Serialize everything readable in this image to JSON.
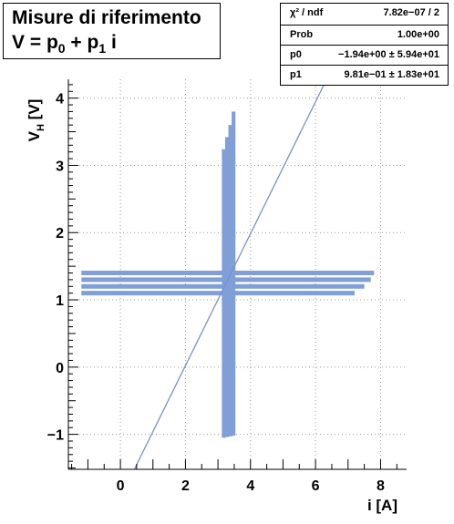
{
  "title": {
    "line1": "Misure di riferimento",
    "line2_prefix": "V = p",
    "line2_sub0": "0",
    "line2_mid": " + p",
    "line2_sub1": "1",
    "line2_suffix": " i"
  },
  "stats": [
    {
      "key": "χ² / ndf",
      "value": "7.82e−07 / 2"
    },
    {
      "key": "Prob",
      "value": "1.00e+00"
    },
    {
      "key": "p0",
      "value": "−1.94e+00 ± 5.94e+01"
    },
    {
      "key": "p1",
      "value": "9.81e−01 ± 1.83e+01"
    }
  ],
  "colors": {
    "fill": "#7f9fd6",
    "line": "#7b8fcf",
    "axis": "#000000",
    "grid": "#9a9a9a"
  },
  "chart_data": {
    "type": "scatter",
    "xlabel": "i [A]",
    "ylabel_main": "V",
    "ylabel_sub": "H",
    "ylabel_unit": " [V]",
    "xlim": [
      -1.6,
      8.8
    ],
    "ylim": [
      -1.52,
      4.28
    ],
    "xticks": [
      0,
      2,
      4,
      6,
      8
    ],
    "yticks": [
      -1,
      0,
      1,
      2,
      3,
      4
    ],
    "grid": true,
    "fit_line": {
      "p0": -1.94,
      "p1": 0.981
    },
    "horizontal_bands": [
      {
        "y": 1.1,
        "x0": -1.2,
        "x1": 7.2
      },
      {
        "y": 1.2,
        "x0": -1.2,
        "x1": 7.5
      },
      {
        "y": 1.3,
        "x0": -1.2,
        "x1": 7.7
      },
      {
        "y": 1.4,
        "x0": -1.2,
        "x1": 7.8
      }
    ],
    "vertical_bands": [
      {
        "x": 3.12,
        "y0": -1.05,
        "y1": 3.24
      },
      {
        "x": 3.22,
        "y0": -1.04,
        "y1": 3.42
      },
      {
        "x": 3.32,
        "y0": -1.03,
        "y1": 3.6
      },
      {
        "x": 3.42,
        "y0": -1.02,
        "y1": 3.8
      }
    ]
  }
}
